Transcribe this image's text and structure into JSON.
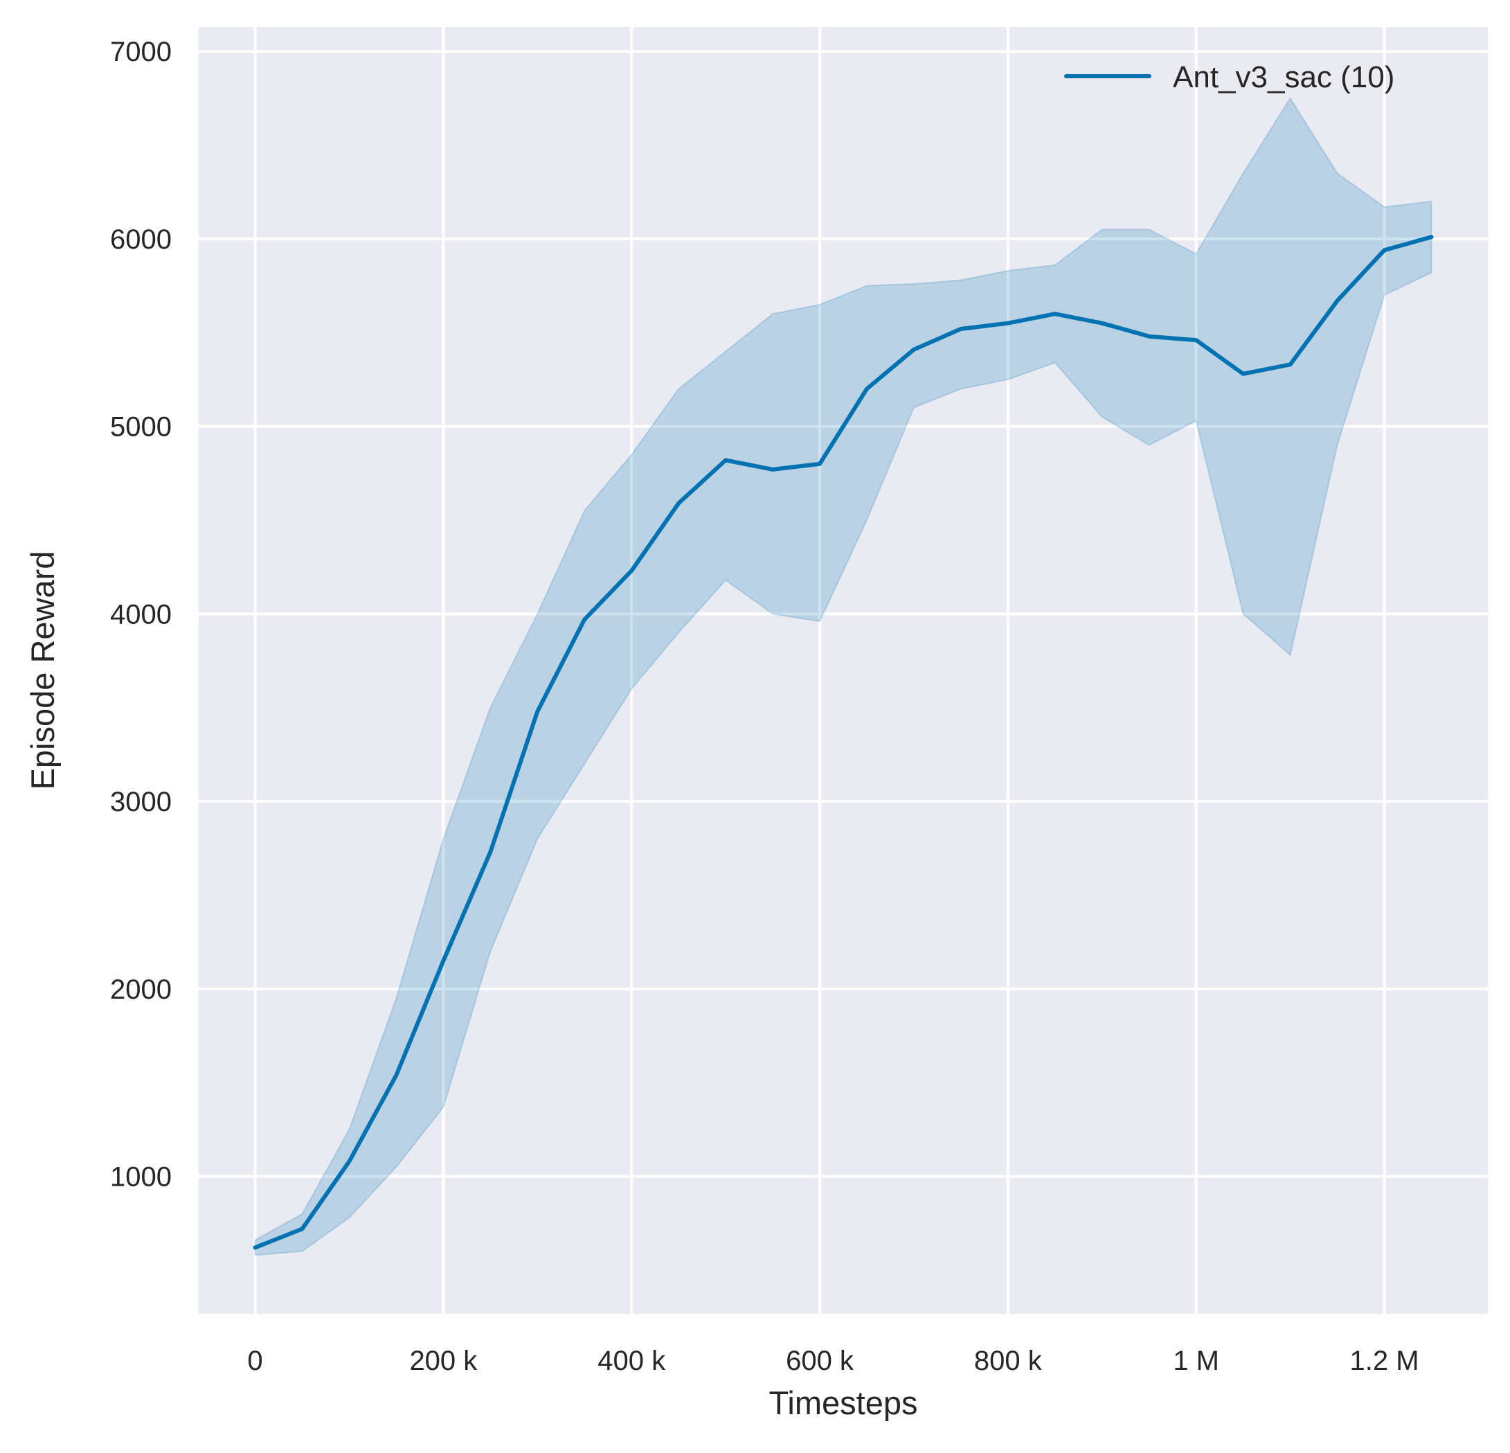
{
  "chart_data": {
    "type": "line",
    "title": "",
    "xlabel": "Timesteps",
    "ylabel": "Episode Reward",
    "xlim": [
      -60000,
      1310000
    ],
    "ylim": [
      267,
      7130
    ],
    "grid": true,
    "legend_placement": "top-right",
    "x_ticks": [
      0,
      200000,
      400000,
      600000,
      800000,
      1000000,
      1200000
    ],
    "x_tick_labels": [
      "0",
      "200 k",
      "400 k",
      "600 k",
      "800 k",
      "1 M",
      "1.2 M"
    ],
    "y_ticks": [
      1000,
      2000,
      3000,
      4000,
      5000,
      6000,
      7000
    ],
    "y_tick_labels": [
      "1000",
      "2000",
      "3000",
      "4000",
      "5000",
      "6000",
      "7000"
    ],
    "colors": {
      "line": "#0072b2",
      "band": "#0072b2",
      "background": "#eaeaf2",
      "grid": "#ffffff"
    },
    "series": [
      {
        "name": "Ant_v3_sac (10)",
        "x": [
          0,
          50000,
          100000,
          150000,
          200000,
          250000,
          300000,
          350000,
          400000,
          450000,
          500000,
          550000,
          600000,
          650000,
          700000,
          750000,
          800000,
          850000,
          900000,
          950000,
          1000000,
          1050000,
          1100000,
          1150000,
          1200000,
          1250000
        ],
        "y": [
          620,
          720,
          1080,
          1540,
          2150,
          2730,
          3480,
          3970,
          4230,
          4590,
          4820,
          4770,
          4800,
          5200,
          5410,
          5520,
          5550,
          5600,
          5550,
          5480,
          5460,
          5280,
          5330,
          5670,
          5940,
          6010
        ],
        "upper": [
          660,
          800,
          1250,
          1950,
          2800,
          3500,
          4000,
          4550,
          4850,
          5200,
          5400,
          5600,
          5650,
          5750,
          5760,
          5780,
          5830,
          5860,
          6050,
          6050,
          5920,
          6350,
          6750,
          6350,
          6170,
          6200
        ],
        "lower": [
          580,
          600,
          780,
          1050,
          1370,
          2200,
          2800,
          3200,
          3600,
          3900,
          4180,
          4000,
          3960,
          4500,
          5100,
          5200,
          5250,
          5340,
          5050,
          4900,
          5030,
          4000,
          3780,
          4900,
          5700,
          5820
        ]
      }
    ]
  }
}
